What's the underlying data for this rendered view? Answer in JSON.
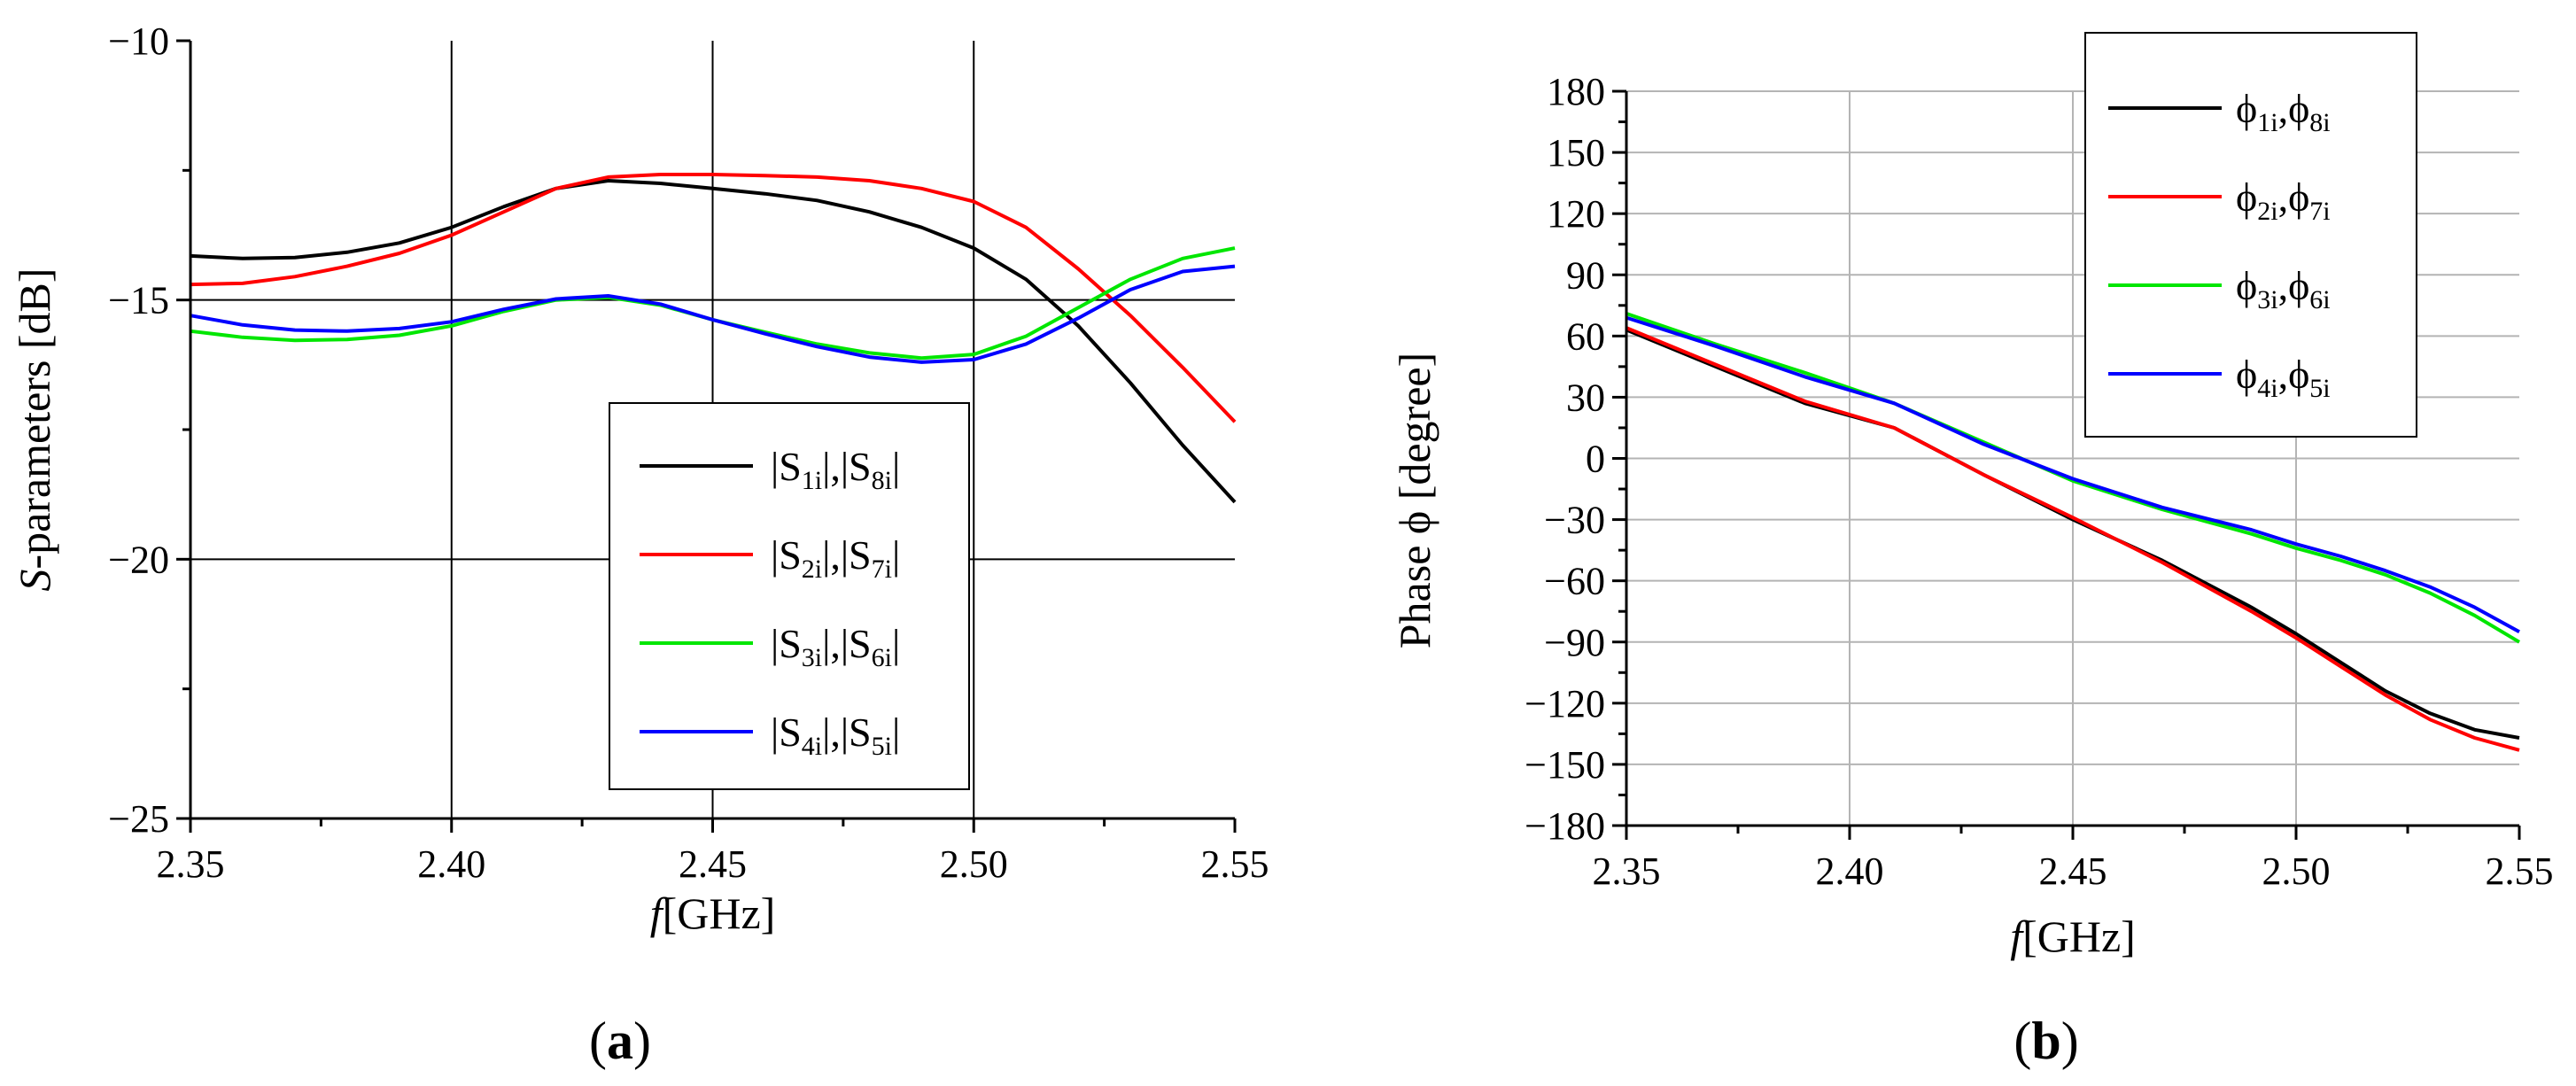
{
  "chart_data": [
    {
      "type": "line",
      "panel_label": "a",
      "title": "",
      "ylabel_italic": "S",
      "ylabel_rest": "-parameters [dB]",
      "xlabel_italic": "f",
      "xlabel_rest": "[GHz]",
      "xlim": [
        2.35,
        2.55
      ],
      "ylim": [
        -25,
        -10
      ],
      "xticks": [
        2.35,
        2.4,
        2.45,
        2.5,
        2.55
      ],
      "xtick_labels": [
        "2.35",
        "2.40",
        "2.45",
        "2.50",
        "2.55"
      ],
      "yticks": [
        -25,
        -20,
        -15,
        -10
      ],
      "ytick_labels": [
        "−25",
        "−20",
        "−15",
        "−10"
      ],
      "grid": true,
      "legend_position": "lower-right",
      "series": [
        {
          "name": "|S1i|,|S8i|",
          "legend_a": "S",
          "sub_a": "1i",
          "legend_b": "S",
          "sub_b": "8i",
          "wrap": "abs",
          "color": "#000000",
          "x": [
            2.35,
            2.36,
            2.37,
            2.38,
            2.39,
            2.4,
            2.41,
            2.42,
            2.43,
            2.44,
            2.45,
            2.46,
            2.47,
            2.48,
            2.49,
            2.5,
            2.51,
            2.52,
            2.53,
            2.54,
            2.55
          ],
          "y": [
            -14.15,
            -14.2,
            -14.18,
            -14.08,
            -13.9,
            -13.6,
            -13.2,
            -12.85,
            -12.7,
            -12.75,
            -12.85,
            -12.95,
            -13.08,
            -13.3,
            -13.6,
            -14.0,
            -14.6,
            -15.5,
            -16.6,
            -17.8,
            -18.9
          ]
        },
        {
          "name": "|S2i|,|S7i|",
          "legend_a": "S",
          "sub_a": "2i",
          "legend_b": "S",
          "sub_b": "7i",
          "wrap": "abs",
          "color": "#ff0000",
          "x": [
            2.35,
            2.36,
            2.37,
            2.38,
            2.39,
            2.4,
            2.41,
            2.42,
            2.43,
            2.44,
            2.45,
            2.46,
            2.47,
            2.48,
            2.49,
            2.5,
            2.51,
            2.52,
            2.53,
            2.54,
            2.55
          ],
          "y": [
            -14.7,
            -14.68,
            -14.55,
            -14.35,
            -14.1,
            -13.75,
            -13.3,
            -12.85,
            -12.63,
            -12.58,
            -12.58,
            -12.6,
            -12.63,
            -12.7,
            -12.85,
            -13.1,
            -13.6,
            -14.4,
            -15.3,
            -16.3,
            -17.35
          ]
        },
        {
          "name": "|S3i|,|S6i|",
          "legend_a": "S",
          "sub_a": "3i",
          "legend_b": "S",
          "sub_b": "6i",
          "wrap": "abs",
          "color": "#00e600",
          "x": [
            2.35,
            2.36,
            2.37,
            2.38,
            2.39,
            2.4,
            2.41,
            2.42,
            2.43,
            2.44,
            2.45,
            2.46,
            2.47,
            2.48,
            2.49,
            2.5,
            2.51,
            2.52,
            2.53,
            2.54,
            2.55
          ],
          "y": [
            -15.6,
            -15.72,
            -15.78,
            -15.76,
            -15.68,
            -15.5,
            -15.22,
            -15.0,
            -14.95,
            -15.1,
            -15.38,
            -15.62,
            -15.85,
            -16.02,
            -16.12,
            -16.05,
            -15.7,
            -15.15,
            -14.6,
            -14.2,
            -14.0
          ]
        },
        {
          "name": "|S4i|,|S5i|",
          "legend_a": "S",
          "sub_a": "4i",
          "legend_b": "S",
          "sub_b": "5i",
          "wrap": "abs",
          "color": "#0000ff",
          "x": [
            2.35,
            2.36,
            2.37,
            2.38,
            2.39,
            2.4,
            2.41,
            2.42,
            2.43,
            2.44,
            2.45,
            2.46,
            2.47,
            2.48,
            2.49,
            2.5,
            2.51,
            2.52,
            2.53,
            2.54,
            2.55
          ],
          "y": [
            -15.3,
            -15.48,
            -15.58,
            -15.6,
            -15.55,
            -15.42,
            -15.18,
            -14.98,
            -14.92,
            -15.08,
            -15.38,
            -15.65,
            -15.9,
            -16.1,
            -16.2,
            -16.15,
            -15.85,
            -15.35,
            -14.8,
            -14.45,
            -14.35
          ]
        }
      ]
    },
    {
      "type": "line",
      "panel_label": "b",
      "title": "",
      "ylabel_italic": "",
      "ylabel_rest": "Phase ϕ [degree]",
      "xlabel_italic": "f",
      "xlabel_rest": "[GHz]",
      "xlim": [
        2.35,
        2.55
      ],
      "ylim": [
        -180,
        180
      ],
      "xticks": [
        2.35,
        2.4,
        2.45,
        2.5,
        2.55
      ],
      "xtick_labels": [
        "2.35",
        "2.40",
        "2.45",
        "2.50",
        "2.55"
      ],
      "yticks": [
        -180,
        -150,
        -120,
        -90,
        -60,
        -30,
        0,
        30,
        60,
        90,
        120,
        150,
        180
      ],
      "ytick_labels": [
        "−180",
        "−150",
        "−120",
        "−90",
        "−60",
        "−30",
        "0",
        "30",
        "60",
        "90",
        "120",
        "150",
        "180"
      ],
      "grid": true,
      "legend_position": "top-right",
      "series": [
        {
          "name": "ϕ1i,ϕ8i",
          "legend_a": "ϕ",
          "sub_a": "1i",
          "legend_b": "ϕ",
          "sub_b": "8i",
          "wrap": "none",
          "color": "#000000",
          "x": [
            2.35,
            2.37,
            2.39,
            2.41,
            2.43,
            2.45,
            2.47,
            2.49,
            2.5,
            2.51,
            2.52,
            2.53,
            2.54,
            2.55
          ],
          "y": [
            63,
            45,
            27,
            15,
            -8,
            -30,
            -50,
            -73,
            -86,
            -100,
            -114,
            -125,
            -133,
            -137
          ]
        },
        {
          "name": "ϕ2i,ϕ7i",
          "legend_a": "ϕ",
          "sub_a": "2i",
          "legend_b": "ϕ",
          "sub_b": "7i",
          "wrap": "none",
          "color": "#ff0000",
          "x": [
            2.35,
            2.37,
            2.39,
            2.41,
            2.43,
            2.45,
            2.47,
            2.49,
            2.5,
            2.51,
            2.52,
            2.53,
            2.54,
            2.55
          ],
          "y": [
            64,
            46,
            28,
            15,
            -8,
            -29,
            -51,
            -75,
            -88,
            -102,
            -116,
            -128,
            -137,
            -143
          ]
        },
        {
          "name": "ϕ3i,ϕ6i",
          "legend_a": "ϕ",
          "sub_a": "3i",
          "legend_b": "ϕ",
          "sub_b": "6i",
          "wrap": "none",
          "color": "#00e600",
          "x": [
            2.35,
            2.37,
            2.39,
            2.41,
            2.43,
            2.45,
            2.47,
            2.49,
            2.5,
            2.51,
            2.52,
            2.53,
            2.54,
            2.55
          ],
          "y": [
            71,
            56,
            42,
            27,
            8,
            -11,
            -25,
            -37,
            -44,
            -50,
            -57,
            -66,
            -77,
            -90
          ]
        },
        {
          "name": "ϕ4i,ϕ5i",
          "legend_a": "ϕ",
          "sub_a": "4i",
          "legend_b": "ϕ",
          "sub_b": "5i",
          "wrap": "none",
          "color": "#0000ff",
          "x": [
            2.35,
            2.37,
            2.39,
            2.41,
            2.43,
            2.45,
            2.47,
            2.49,
            2.5,
            2.51,
            2.52,
            2.53,
            2.54,
            2.55
          ],
          "y": [
            69,
            55,
            40,
            27,
            7,
            -10,
            -24,
            -35,
            -42,
            -48,
            -55,
            -63,
            -73,
            -85
          ]
        }
      ]
    }
  ]
}
